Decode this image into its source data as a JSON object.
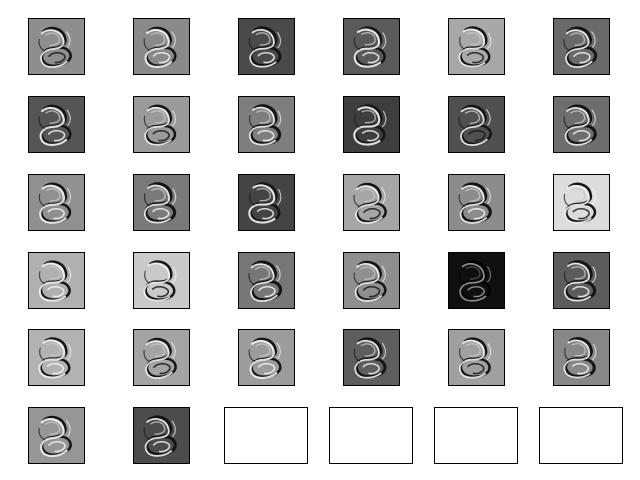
{
  "figure": {
    "rows": 6,
    "cols": 6,
    "filled_panels": 32,
    "empty_panels": 4,
    "panels": [
      {
        "bg": "#8e8e8e",
        "style": 0
      },
      {
        "bg": "#8a8a8a",
        "style": 1
      },
      {
        "bg": "#4a4a4a",
        "style": 2
      },
      {
        "bg": "#5a5a5a",
        "style": 1
      },
      {
        "bg": "#a8a8a8",
        "style": 0
      },
      {
        "bg": "#6a6a6a",
        "style": 2
      },
      {
        "bg": "#555555",
        "style": 1
      },
      {
        "bg": "#9a9a9a",
        "style": 0
      },
      {
        "bg": "#7e7e7e",
        "style": 2
      },
      {
        "bg": "#3e3e3e",
        "style": 1
      },
      {
        "bg": "#505050",
        "style": 0
      },
      {
        "bg": "#6e6e6e",
        "style": 2
      },
      {
        "bg": "#909090",
        "style": 1
      },
      {
        "bg": "#7a7a7a",
        "style": 2
      },
      {
        "bg": "#444444",
        "style": 1
      },
      {
        "bg": "#a6a6a6",
        "style": 0
      },
      {
        "bg": "#8c8c8c",
        "style": 2
      },
      {
        "bg": "#dcdcdc",
        "style": 0
      },
      {
        "bg": "#b0b0b0",
        "style": 1
      },
      {
        "bg": "#cacaca",
        "style": 0
      },
      {
        "bg": "#777777",
        "style": 2
      },
      {
        "bg": "#8f8f8f",
        "style": 0
      },
      {
        "bg": "#0f0f0f",
        "style": 3
      },
      {
        "bg": "#5c5c5c",
        "style": 2
      },
      {
        "bg": "#b2b2b2",
        "style": 1
      },
      {
        "bg": "#a4a4a4",
        "style": 0
      },
      {
        "bg": "#9c9c9c",
        "style": 1
      },
      {
        "bg": "#5e5e5e",
        "style": 2
      },
      {
        "bg": "#a0a0a0",
        "style": 0
      },
      {
        "bg": "#888888",
        "style": 2
      },
      {
        "bg": "#969696",
        "style": 1
      },
      {
        "bg": "#4c4c4c",
        "style": 2
      }
    ]
  }
}
